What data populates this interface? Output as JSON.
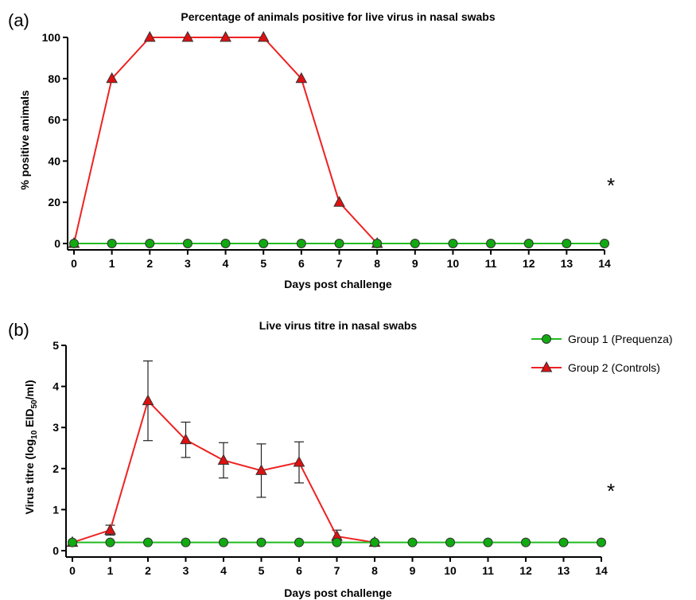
{
  "figure": {
    "panel_a_label": "(a)",
    "panel_b_label": "(b)"
  },
  "legend": {
    "group1": "Group 1 (Prequenza)",
    "group2": "Group 2 (Controls)"
  },
  "colors": {
    "group1_line": "#22bb22",
    "group1_marker": "#11aa11",
    "group2_line": "#ee2222",
    "group2_marker": "#dd1111"
  },
  "chart_data": [
    {
      "type": "line",
      "title": "Percentage of animals positive for live virus in nasal swabs",
      "xlabel": "Days post challenge",
      "ylabel": "% positive animals",
      "x": [
        0,
        1,
        2,
        3,
        4,
        5,
        6,
        7,
        8,
        9,
        10,
        11,
        12,
        13,
        14
      ],
      "xlim": [
        0,
        14
      ],
      "ylim": [
        0,
        100
      ],
      "yticks": [
        0,
        20,
        40,
        60,
        80,
        100
      ],
      "annotation": "*",
      "series": [
        {
          "name": "Group 1 (Prequenza)",
          "marker": "circle",
          "values": [
            0,
            0,
            0,
            0,
            0,
            0,
            0,
            0,
            0,
            0,
            0,
            0,
            0,
            0,
            0
          ]
        },
        {
          "name": "Group 2 (Controls)",
          "marker": "triangle",
          "values": [
            0,
            80,
            100,
            100,
            100,
            100,
            80,
            20,
            0,
            null,
            null,
            null,
            null,
            null,
            null
          ]
        }
      ],
      "grid": false
    },
    {
      "type": "line",
      "title": "Live virus titre in nasal swabs",
      "xlabel": "Days post challenge",
      "ylabel_parts": [
        "Virus titre (log",
        "10",
        " EID",
        "50",
        "/ml)"
      ],
      "x": [
        0,
        1,
        2,
        3,
        4,
        5,
        6,
        7,
        8,
        9,
        10,
        11,
        12,
        13,
        14
      ],
      "xlim": [
        0,
        14
      ],
      "ylim": [
        0,
        5
      ],
      "yticks": [
        0,
        1,
        2,
        3,
        4,
        5
      ],
      "annotation": "*",
      "legend_position": "top-right",
      "series": [
        {
          "name": "Group 1 (Prequenza)",
          "marker": "circle",
          "values": [
            0.2,
            0.2,
            0.2,
            0.2,
            0.2,
            0.2,
            0.2,
            0.2,
            0.2,
            0.2,
            0.2,
            0.2,
            0.2,
            0.2,
            0.2
          ]
        },
        {
          "name": "Group 2 (Controls)",
          "marker": "triangle",
          "values": [
            0.2,
            0.5,
            3.65,
            2.7,
            2.2,
            1.95,
            2.15,
            0.35,
            0.2,
            null,
            null,
            null,
            null,
            null,
            null
          ],
          "error": [
            0,
            0.12,
            0.97,
            0.43,
            0.43,
            0.65,
            0.5,
            0.15,
            0,
            null,
            null,
            null,
            null,
            null,
            null
          ]
        }
      ],
      "grid": false
    }
  ]
}
